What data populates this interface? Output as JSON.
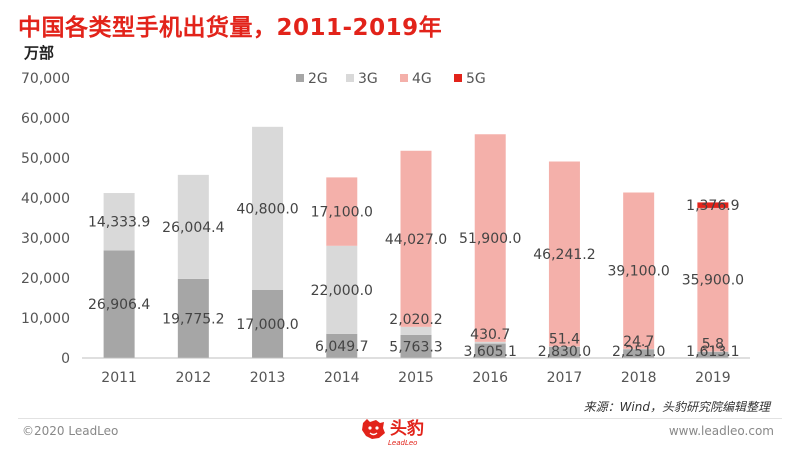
{
  "title": "中国各类型手机出货量，2011-2019年",
  "unit": "万部",
  "source": "来源：Wind，头豹研究院编辑整理",
  "footer": {
    "copyright": "©2020 LeadLeo",
    "website": "www.leadleo.com",
    "brand_name": "头豹",
    "brand_sub": "LeadLeo"
  },
  "colors": {
    "2G": "#a6a6a6",
    "3G": "#d9d9d9",
    "4G": "#f4b0aa",
    "5G": "#e2231a"
  },
  "chart_data": {
    "type": "bar",
    "stacked": true,
    "categories": [
      "2011",
      "2012",
      "2013",
      "2014",
      "2015",
      "2016",
      "2017",
      "2018",
      "2019"
    ],
    "series": [
      {
        "name": "2G",
        "values": [
          26906.4,
          19775.2,
          17000.0,
          6049.7,
          5763.3,
          3605.1,
          2830.0,
          2251.0,
          1613.1
        ],
        "labels": [
          "26,906.4",
          "19,775.2",
          "17,000.0",
          "6,049.7",
          "5,763.3",
          "3,605.1",
          "2,830.0",
          "2,251.0",
          "1,613.1"
        ]
      },
      {
        "name": "3G",
        "values": [
          14333.9,
          26004.4,
          40800.0,
          22000.0,
          2020.2,
          430.7,
          51.4,
          24.7,
          5.8
        ],
        "labels": [
          "14,333.9",
          "26,004.4",
          "40,800.0",
          "22,000.0",
          "2,020.2",
          "430.7",
          "51.4",
          "24.7",
          "5.8"
        ]
      },
      {
        "name": "4G",
        "values": [
          0,
          0,
          0,
          17100.0,
          44027.0,
          51900.0,
          46241.2,
          39100.0,
          35900.0
        ],
        "labels": [
          "",
          "",
          "",
          "17,100.0",
          "44,027.0",
          "51,900.0",
          "46,241.2",
          "39,100.0",
          "35,900.0"
        ]
      },
      {
        "name": "5G",
        "values": [
          0,
          0,
          0,
          0,
          0,
          0,
          0,
          0,
          1376.9
        ],
        "labels": [
          "",
          "",
          "",
          "",
          "",
          "",
          "",
          "",
          "1,376.9"
        ]
      }
    ],
    "ylim": [
      0,
      70000
    ],
    "yticks": [
      "0",
      "10,000",
      "20,000",
      "30,000",
      "40,000",
      "50,000",
      "60,000",
      "70,000"
    ],
    "ytick_values": [
      0,
      10000,
      20000,
      30000,
      40000,
      50000,
      60000,
      70000
    ],
    "legend_position": "top",
    "grid": false
  }
}
